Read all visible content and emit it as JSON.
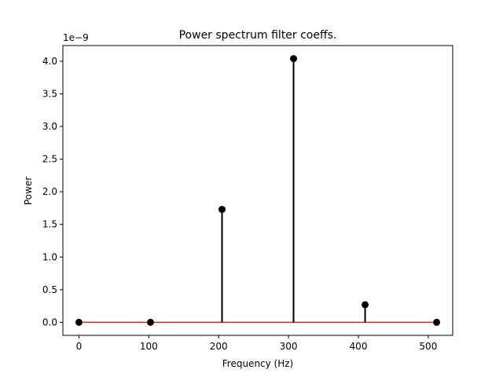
{
  "chart_data": {
    "type": "stem",
    "title": "Power spectrum filter coeffs.",
    "xlabel": "Frequency (Hz)",
    "ylabel": "Power",
    "y_scale_label": "1e−9",
    "y_scale_factor": 1e-09,
    "x": [
      0,
      102.4,
      204.8,
      307.2,
      409.6,
      512
    ],
    "values": [
      0,
      0,
      1.73,
      4.04,
      0.27,
      0
    ],
    "xlim": [
      -23,
      535
    ],
    "ylim": [
      -0.2,
      4.24
    ],
    "x_ticks": [
      0,
      100,
      200,
      300,
      400,
      500
    ],
    "x_tick_labels": [
      "0",
      "100",
      "200",
      "300",
      "400",
      "500"
    ],
    "y_ticks": [
      0,
      0.5,
      1,
      1.5,
      2,
      2.5,
      3,
      3.5,
      4
    ],
    "y_tick_labels": [
      "0.0",
      "0.5",
      "1.0",
      "1.5",
      "2.0",
      "2.5",
      "3.0",
      "3.5",
      "4.0"
    ],
    "grid": false,
    "colors": {
      "stem": "#000000",
      "marker": "#000000",
      "baseline": "#d62728"
    }
  }
}
